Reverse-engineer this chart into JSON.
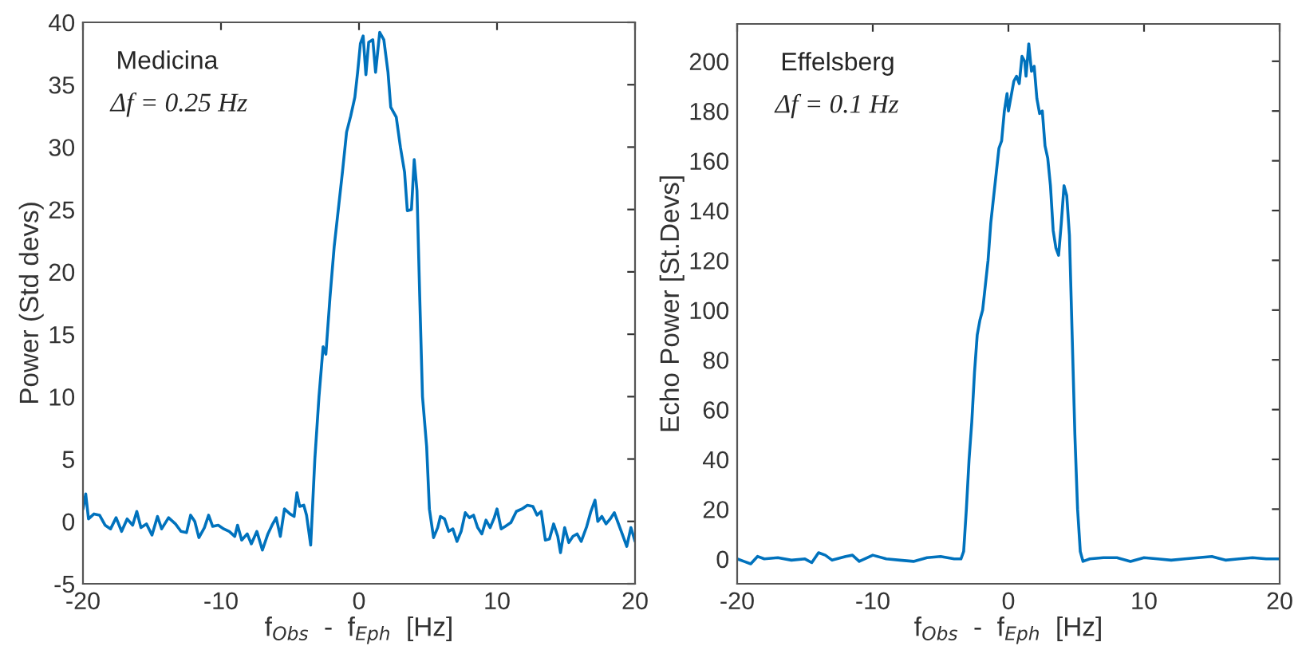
{
  "chart_data": [
    {
      "type": "line",
      "xlabel": "f$_{Obs}$  -  f$_{Eph}$  [Hz]",
      "ylabel": "Power (Std devs)",
      "annotations": [
        "Medicina",
        "Δf = 0.25 Hz"
      ],
      "xlim": [
        -20,
        20
      ],
      "xticks": [
        -20,
        -10,
        0,
        10,
        20
      ],
      "ylim": [
        -5,
        40
      ],
      "yticks": [
        -5,
        0,
        5,
        10,
        15,
        20,
        25,
        30,
        35,
        40
      ],
      "grid": false,
      "legend": false,
      "series": [
        {
          "color": "#0072bd",
          "x": [
            -20,
            -19.8,
            -19.6,
            -19.2,
            -18.8,
            -18.4,
            -18.0,
            -17.6,
            -17.2,
            -16.8,
            -16.4,
            -16.1,
            -15.8,
            -15.4,
            -15.0,
            -14.6,
            -14.3,
            -13.8,
            -13.3,
            -12.9,
            -12.5,
            -12.2,
            -11.9,
            -11.6,
            -11.2,
            -10.9,
            -10.6,
            -10.2,
            -9.8,
            -9.4,
            -9.0,
            -8.8,
            -8.5,
            -8.1,
            -7.8,
            -7.4,
            -7.0,
            -6.6,
            -6.3,
            -6.0,
            -5.7,
            -5.4,
            -5.0,
            -4.7,
            -4.5,
            -4.3,
            -4.0,
            -3.8,
            -3.5,
            -3.2,
            -2.9,
            -2.6,
            -2.4,
            -2.1,
            -1.8,
            -1.5,
            -1.2,
            -0.9,
            -0.6,
            -0.3,
            -0.1,
            0.1,
            0.3,
            0.5,
            0.7,
            1.0,
            1.2,
            1.5,
            1.8,
            2.1,
            2.3,
            2.7,
            3.0,
            3.3,
            3.5,
            3.8,
            4.0,
            4.2,
            4.4,
            4.6,
            4.9,
            5.1,
            5.4,
            5.7,
            5.9,
            6.2,
            6.5,
            6.8,
            7.1,
            7.4,
            7.7,
            8.0,
            8.3,
            8.6,
            8.9,
            9.2,
            9.5,
            9.8,
            10.0,
            10.3,
            10.6,
            11.0,
            11.4,
            11.8,
            12.2,
            12.6,
            12.9,
            13.2,
            13.5,
            13.8,
            14.1,
            14.4,
            14.6,
            14.9,
            15.2,
            15.5,
            15.8,
            16.1,
            16.5,
            16.8,
            17.1,
            17.3,
            17.6,
            17.9,
            18.2,
            18.5,
            18.8,
            19.1,
            19.4,
            19.7,
            20.0
          ],
          "values": [
            1.0,
            2.2,
            0.2,
            0.6,
            0.5,
            -0.3,
            -0.6,
            0.3,
            -0.8,
            0.2,
            -0.3,
            0.8,
            -0.5,
            -0.2,
            -1.1,
            0.4,
            -0.6,
            0.3,
            -0.2,
            -0.8,
            -0.9,
            0.5,
            0.0,
            -1.3,
            -0.5,
            0.5,
            -0.4,
            -0.3,
            -0.6,
            -0.8,
            -1.2,
            -0.3,
            -1.5,
            -1.0,
            -1.8,
            -0.8,
            -2.3,
            -1.0,
            -0.3,
            0.3,
            -1.2,
            1.0,
            0.6,
            0.4,
            2.3,
            1.2,
            1.3,
            0.5,
            -1.9,
            5,
            10,
            14.0,
            13.4,
            18,
            22,
            25,
            28,
            31.2,
            32.5,
            34,
            36,
            38.3,
            38.9,
            35.8,
            38.4,
            38.6,
            36.0,
            39.2,
            38.6,
            36,
            33.2,
            32.4,
            30,
            28,
            24.9,
            25,
            29.0,
            26.5,
            18,
            10,
            6,
            1,
            -1.3,
            -0.5,
            0.4,
            0.2,
            -0.8,
            -0.6,
            -1.6,
            -0.8,
            0.7,
            0.3,
            0.5,
            -0.5,
            -1.0,
            0.1,
            -0.5,
            0.3,
            1.0,
            -0.6,
            -0.4,
            -0.1,
            0.8,
            1.0,
            1.3,
            1.2,
            0.5,
            0.8,
            -1.5,
            -1.4,
            -0.2,
            -1.2,
            -2.5,
            -0.5,
            -1.7,
            -1.2,
            -1.0,
            -1.6,
            -0.4,
            0.8,
            1.7,
            0.0,
            0.4,
            -0.2,
            0.2,
            0.7,
            -0.2,
            -1.1,
            -2.0,
            -0.5,
            -1.6
          ]
        }
      ]
    },
    {
      "type": "line",
      "xlabel": "f$_{Obs}$  -  f$_{Eph}$  [Hz]",
      "ylabel": "Echo Power [St.Devs]",
      "annotations": [
        "Effelsberg",
        "Δf = 0.1 Hz"
      ],
      "xlim": [
        -20,
        20
      ],
      "xticks": [
        -20,
        -10,
        0,
        10,
        20
      ],
      "ylim": [
        -10,
        215
      ],
      "yticks": [
        0,
        20,
        40,
        60,
        80,
        100,
        120,
        140,
        160,
        180,
        200
      ],
      "grid": false,
      "legend": false,
      "series": [
        {
          "color": "#0072bd",
          "x": [
            -20,
            -19.5,
            -19.0,
            -18.5,
            -18,
            -17,
            -16,
            -15,
            -14.5,
            -14,
            -13.5,
            -13,
            -12,
            -11.5,
            -11,
            -10,
            -9,
            -8,
            -7,
            -6,
            -5,
            -4,
            -3.5,
            -3.3,
            -3.1,
            -2.9,
            -2.7,
            -2.5,
            -2.3,
            -2.1,
            -1.9,
            -1.7,
            -1.5,
            -1.3,
            -1.1,
            -0.9,
            -0.7,
            -0.5,
            -0.3,
            -0.1,
            0.0,
            0.2,
            0.4,
            0.6,
            0.8,
            1.0,
            1.2,
            1.3,
            1.5,
            1.7,
            1.9,
            2.1,
            2.3,
            2.5,
            2.7,
            2.9,
            3.1,
            3.3,
            3.5,
            3.7,
            3.9,
            4.1,
            4.3,
            4.5,
            4.7,
            4.9,
            5.1,
            5.3,
            5.5,
            6,
            7,
            8,
            9,
            10,
            11,
            12,
            13,
            14,
            15,
            16,
            17,
            18,
            19,
            20
          ],
          "values": [
            0,
            -1,
            -2,
            1,
            0,
            0.5,
            -0.5,
            0,
            -1.5,
            2.5,
            1.5,
            -0.5,
            1,
            1.5,
            -1,
            1.5,
            0,
            -0.5,
            -1,
            0.5,
            1,
            0,
            0,
            3,
            20,
            40,
            55,
            75,
            90,
            96,
            100,
            110,
            120,
            135,
            145,
            155,
            165,
            168,
            180,
            187,
            180,
            186,
            192,
            194,
            191,
            202,
            200,
            194,
            207,
            196,
            198,
            185,
            179,
            180,
            166,
            161,
            150,
            132,
            125,
            122,
            135,
            150,
            146,
            130,
            90,
            50,
            20,
            3,
            -1,
            0,
            0.5,
            0.5,
            -1,
            0.5,
            0,
            -0.5,
            0,
            0.5,
            1,
            -0.5,
            0,
            0.5,
            0,
            0
          ]
        }
      ]
    }
  ]
}
